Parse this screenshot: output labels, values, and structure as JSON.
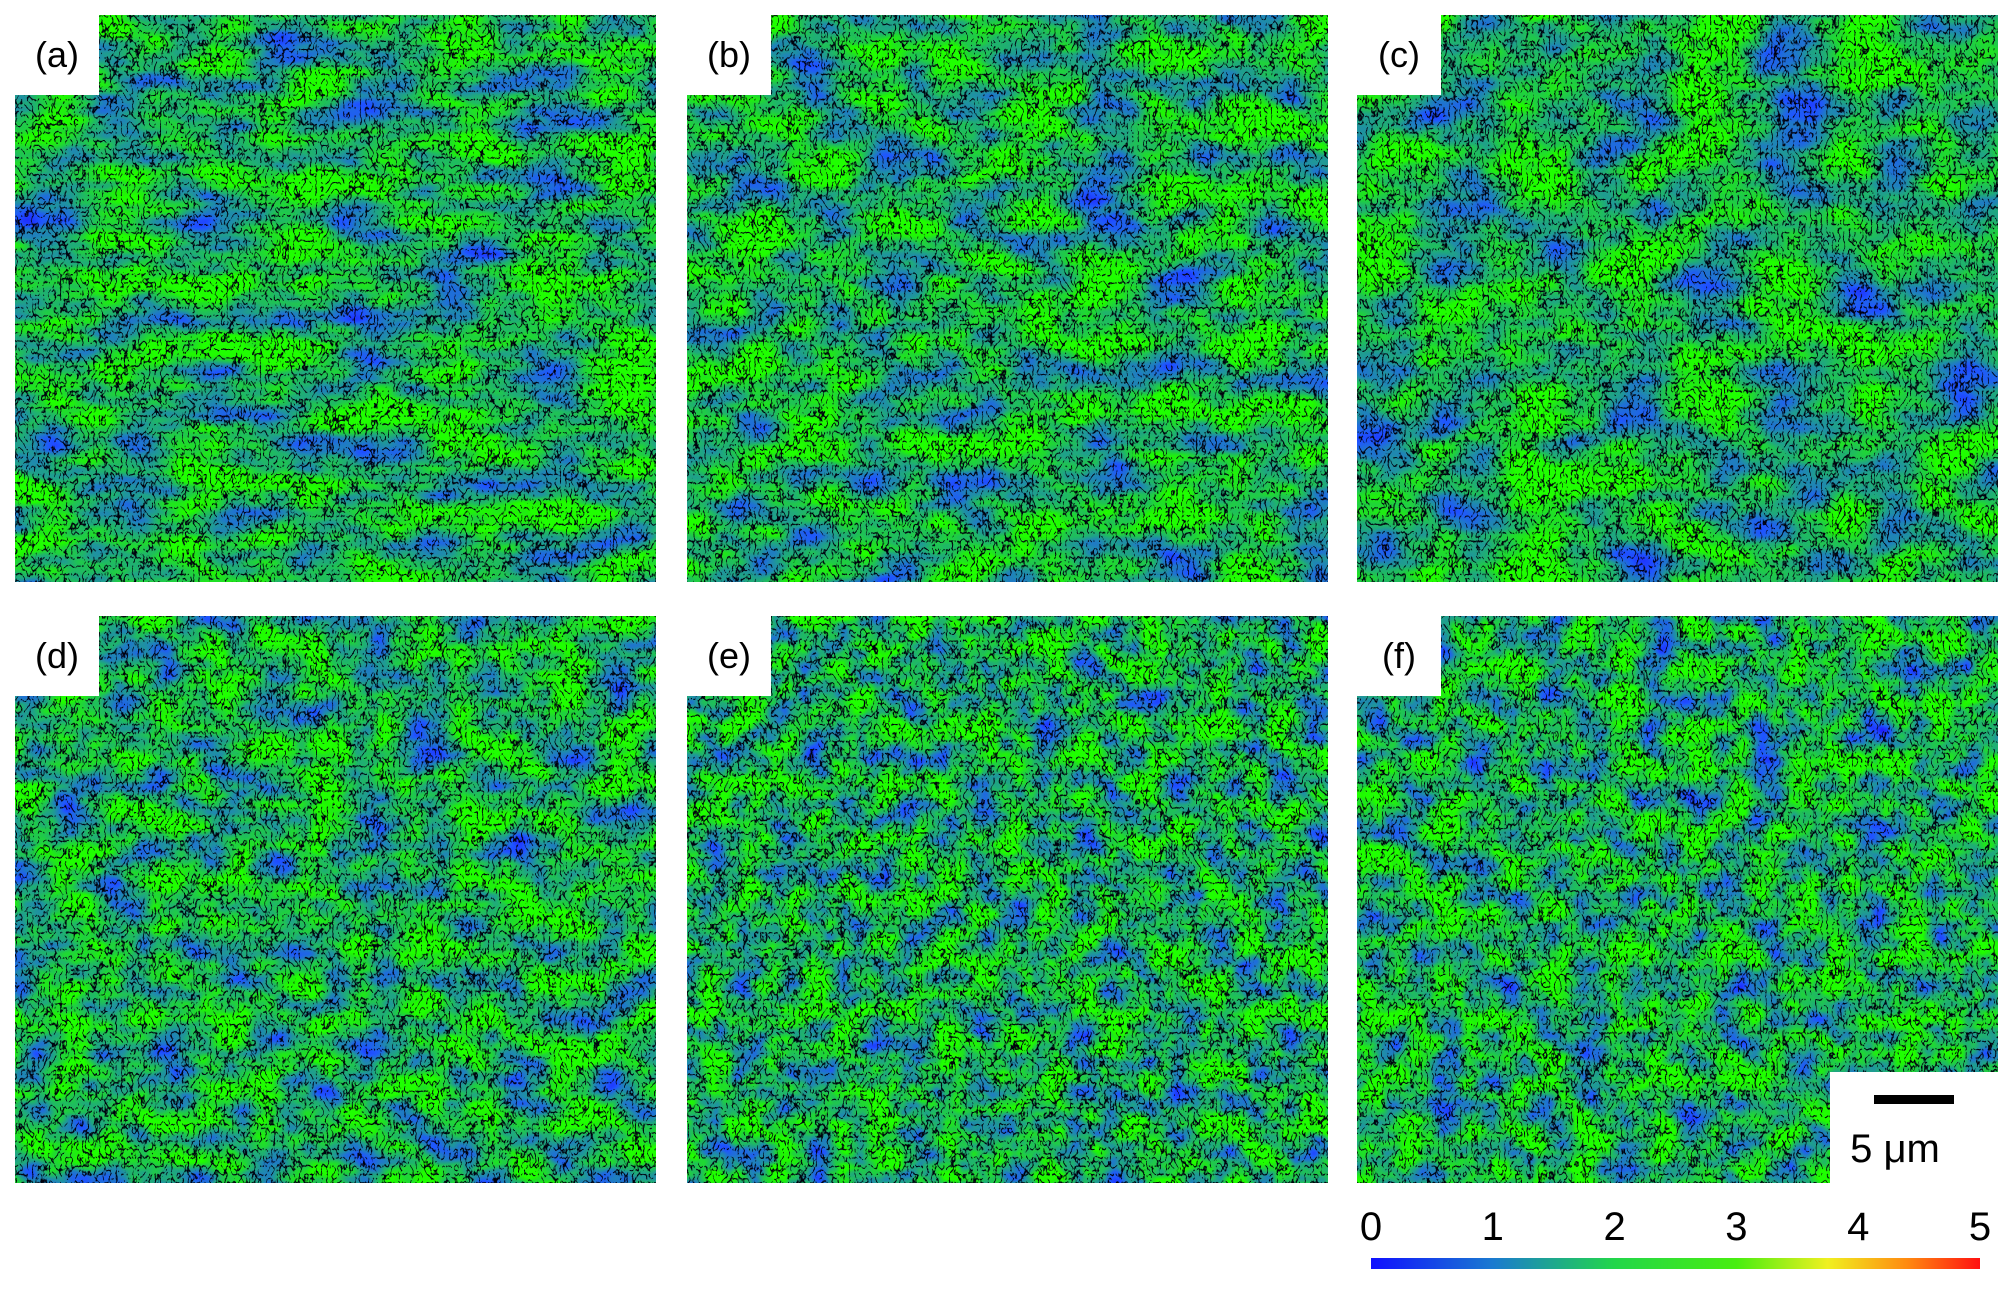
{
  "panels": [
    {
      "label": "(a)"
    },
    {
      "label": "(b)"
    },
    {
      "label": "(c)"
    },
    {
      "label": "(d)"
    },
    {
      "label": "(e)"
    },
    {
      "label": "(f)"
    }
  ],
  "scale_bar": {
    "label": "5 μm"
  },
  "colorbar": {
    "ticks": [
      0,
      1,
      2,
      3,
      4,
      5
    ]
  }
}
